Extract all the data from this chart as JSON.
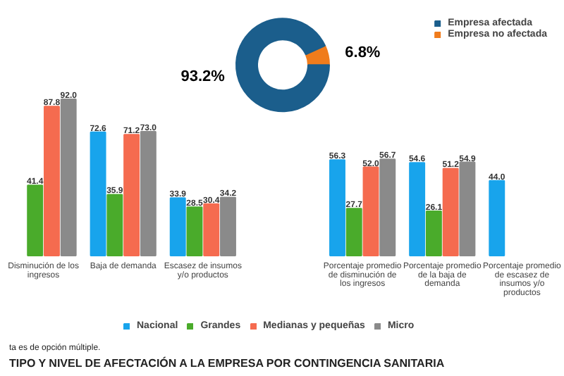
{
  "chart_data": [
    {
      "type": "donut",
      "categories": [
        "Empresa afectada",
        "Empresa no afectada"
      ],
      "values": [
        93.2,
        6.8
      ],
      "colors": [
        "#1b5e8c",
        "#f07c1c"
      ],
      "value_labels": [
        "93.2%",
        "6.8%"
      ],
      "legend": "top right"
    },
    {
      "type": "bar",
      "categories": [
        "Disminución de los ingresos",
        "Baja de demanda",
        "Escasez de insumos y/o productos",
        null,
        "Porcentaje promedio de disminución de los ingresos",
        "Porcentaje promedio de la baja de demanda",
        "Porcentaje promedio de escasez de insumos y/o productos"
      ],
      "series": [
        {
          "name": "Nacional",
          "color": "#18a4ec",
          "values": [
            null,
            72.6,
            33.9,
            null,
            56.3,
            54.6,
            44.0
          ],
          "value_labels": [
            null,
            "72.6",
            "33.9",
            null,
            "56.3",
            "54.6",
            "44.0"
          ]
        },
        {
          "name": "Grandes",
          "color": "#4aab2b",
          "values": [
            41.4,
            35.9,
            28.5,
            null,
            27.7,
            26.1,
            null
          ],
          "value_labels": [
            "41.4",
            "35.9",
            "28.5",
            null,
            "27.7",
            "26.1",
            null
          ]
        },
        {
          "name": "Medianas y pequeñas",
          "color": "#f56b4f",
          "values": [
            87.8,
            71.2,
            30.4,
            null,
            52.0,
            51.2,
            null
          ],
          "value_labels": [
            "87.8",
            "71.2",
            "30.4",
            null,
            "52.0",
            "51.2",
            null
          ]
        },
        {
          "name": "Micro",
          "color": "#8a8a8a",
          "values": [
            92.0,
            73.0,
            34.2,
            null,
            56.7,
            54.9,
            null
          ],
          "value_labels": [
            "92.0",
            "73.0",
            "34.2",
            null,
            "56.7",
            "54.9",
            null
          ]
        }
      ],
      "legend": "bottom",
      "annotations": [
        "ta es de opción múltiple.",
        "TIPO Y NIVEL DE AFECTACIÓN A LA EMPRESA POR CONTINGENCIA SANITARIA"
      ]
    }
  ]
}
